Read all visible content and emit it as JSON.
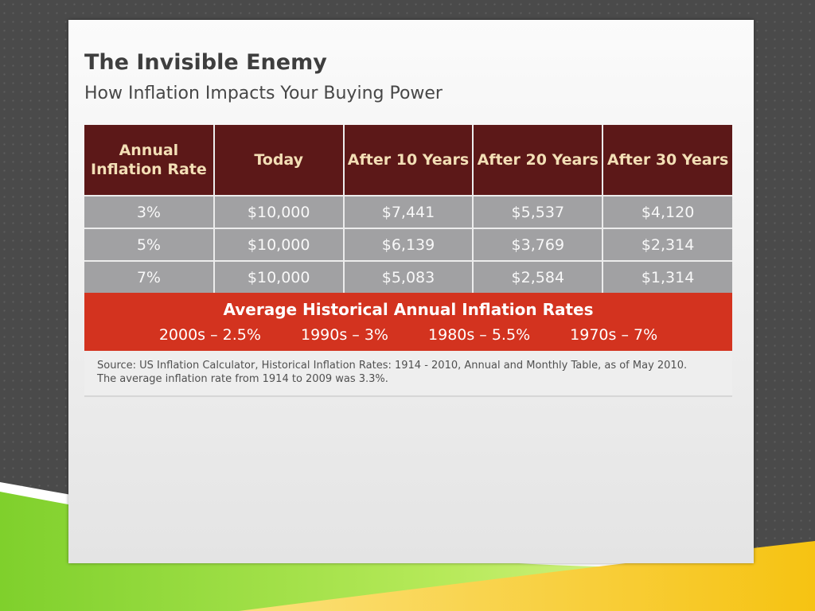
{
  "slide": {
    "title": "The Invisible Enemy",
    "subtitle": "How Inflation Impacts Your Buying Power"
  },
  "table": {
    "headers": [
      "Annual Inflation Rate",
      "Today",
      "After 10 Years",
      "After 20 Years",
      "After 30 Years"
    ],
    "rows": [
      [
        "3%",
        "$10,000",
        "$7,441",
        "$5,537",
        "$4,120"
      ],
      [
        "5%",
        "$10,000",
        "$6,139",
        "$3,769",
        "$2,314"
      ],
      [
        "7%",
        "$10,000",
        "$5,083",
        "$2,584",
        "$1,314"
      ]
    ]
  },
  "historical": {
    "title": "Average Historical Annual Inflation Rates",
    "items": [
      "2000s – 2.5%",
      "1990s – 3%",
      "1980s – 5.5%",
      "1970s – 7%"
    ]
  },
  "source": {
    "line1": "Source: US Inflation Calculator, Historical Inflation Rates: 1914 - 2010, Annual and Monthly Table, as of May 2010.",
    "line2": "The average inflation rate from 1914 to 2009 was 3.3%."
  },
  "colors": {
    "header_bg": "#5c1818",
    "header_text": "#f3dfb6",
    "row_bg": "#a1a1a3",
    "historical_bg": "#d3331f",
    "background": "#4a4a4a",
    "accent_green": "#8fd83a",
    "accent_yellow": "#f7c61a"
  }
}
